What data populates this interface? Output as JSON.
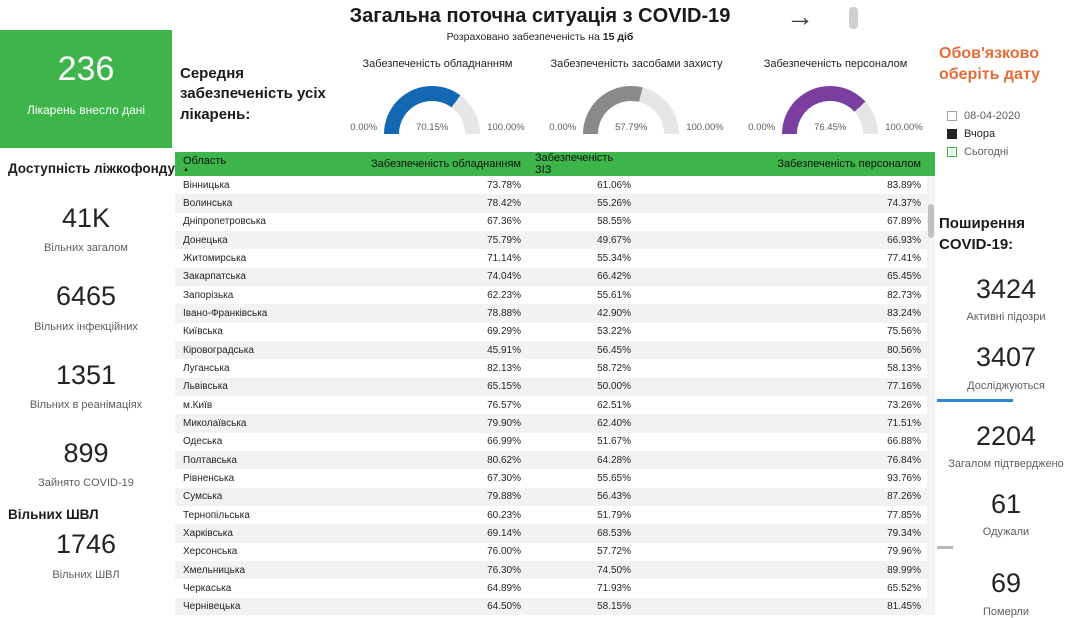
{
  "header": {
    "title": "Загальна поточна ситуація з COVID-19",
    "subtitle_prefix": "Розраховано забезпеченість на ",
    "subtitle_bold": "15 діб",
    "nav_arrow": "→"
  },
  "left_panel": {
    "hospitals_card": {
      "value": "236",
      "label": "Лікарень внесло дані"
    },
    "beds_heading": "Доступність ліжкофонду:",
    "stats": [
      {
        "value": "41K",
        "label": "Вільних загалом"
      },
      {
        "value": "6465",
        "label": "Вільних інфекційних"
      },
      {
        "value": "1351",
        "label": "Вільних в реанімаціях"
      },
      {
        "value": "899",
        "label": "Зайнято COVID-19"
      }
    ],
    "ventilators_heading": "Вільних ШВЛ",
    "ventilators_stat": {
      "value": "1746",
      "label": "Вільних ШВЛ"
    }
  },
  "gauges_section_label": "Середня забезпеченість усіх лікарень:",
  "chart_data": [
    {
      "type": "gauge",
      "items": [
        {
          "title": "Забезпеченість обладнанням",
          "value": 70.15,
          "value_label": "70.15%",
          "min_label": "0.00%",
          "max_label": "100.00%",
          "axis_range": [
            0,
            100
          ],
          "color": "#1268B3"
        },
        {
          "title": "Забезпеченість засобами захисту",
          "value": 57.79,
          "value_label": "57.79%",
          "min_label": "0.00%",
          "max_label": "100.00%",
          "axis_range": [
            0,
            100
          ],
          "color": "#8A8A8A"
        },
        {
          "title": "Забезпеченість персоналом",
          "value": 76.45,
          "value_label": "76.45%",
          "min_label": "0.00%",
          "max_label": "100.00%",
          "axis_range": [
            0,
            100
          ],
          "color": "#7B3FA0"
        }
      ]
    },
    {
      "type": "table",
      "columns": [
        "Область",
        "Забезпеченість обладнанням",
        "Забезпеченість ЗІЗ",
        "Забезпеченість персоналом"
      ],
      "sort_column": "Область",
      "sort_direction": "ascending",
      "sort_icon": "▲",
      "rows": [
        [
          "Вінницька",
          "73.78%",
          "61.06%",
          "83.89%"
        ],
        [
          "Волинська",
          "78.42%",
          "55.26%",
          "74.37%"
        ],
        [
          "Дніпропетровська",
          "67.36%",
          "58.55%",
          "67.89%"
        ],
        [
          "Донецька",
          "75.79%",
          "49.67%",
          "66.93%"
        ],
        [
          "Житомирська",
          "71.14%",
          "55.34%",
          "77.41%"
        ],
        [
          "Закарпатська",
          "74.04%",
          "66.42%",
          "65.45%"
        ],
        [
          "Запорізька",
          "62.23%",
          "55.61%",
          "82.73%"
        ],
        [
          "Івано-Франківська",
          "78.88%",
          "42.90%",
          "83.24%"
        ],
        [
          "Київська",
          "69.29%",
          "53.22%",
          "75.56%"
        ],
        [
          "Кіровоградська",
          "45.91%",
          "56.45%",
          "80.56%"
        ],
        [
          "Луганська",
          "82.13%",
          "58.72%",
          "58.13%"
        ],
        [
          "Львівська",
          "65.15%",
          "50.00%",
          "77.16%"
        ],
        [
          "м.Київ",
          "76.57%",
          "62.51%",
          "73.26%"
        ],
        [
          "Миколаївська",
          "79.90%",
          "62.40%",
          "71.51%"
        ],
        [
          "Одеська",
          "66.99%",
          "51.67%",
          "66.88%"
        ],
        [
          "Полтавська",
          "80.62%",
          "64.28%",
          "76.84%"
        ],
        [
          "Рівненська",
          "67.30%",
          "55.65%",
          "93.76%"
        ],
        [
          "Сумська",
          "79.88%",
          "56.43%",
          "87.26%"
        ],
        [
          "Тернопільська",
          "60.23%",
          "51.79%",
          "77.85%"
        ],
        [
          "Харківська",
          "69.14%",
          "68.53%",
          "79.34%"
        ],
        [
          "Херсонська",
          "76.00%",
          "57.72%",
          "79.96%"
        ],
        [
          "Хмельницька",
          "76.30%",
          "74.50%",
          "89.99%"
        ],
        [
          "Черкаська",
          "64.89%",
          "71.93%",
          "65.52%"
        ],
        [
          "Чернівецька",
          "64.50%",
          "58.15%",
          "81.45%"
        ]
      ]
    }
  ],
  "right_panel": {
    "date_notice_line1": "Обов'язково",
    "date_notice_line2": "оберіть дату",
    "date_options": [
      {
        "label": "08-04-2020",
        "checked": false
      },
      {
        "label": "Вчора",
        "checked": true
      },
      {
        "label": "Сьогодні",
        "checked": false
      }
    ],
    "spread_heading": "Поширення COVID-19:",
    "stats": [
      {
        "value": "3424",
        "label": "Активні підозри"
      },
      {
        "value": "3407",
        "label": "Досліджуються",
        "divider": "blue"
      },
      {
        "value": "2204",
        "label": "Загалом підтверджено"
      },
      {
        "value": "61",
        "label": "Одужали",
        "divider": "gray"
      },
      {
        "value": "69",
        "label": "Померли"
      }
    ]
  },
  "colors": {
    "green": "#3DB54A",
    "orange": "#E66C37",
    "gauge_blue": "#1268B3",
    "gauge_gray": "#8A8A8A",
    "gauge_purple": "#7B3FA0",
    "underline_blue": "#2B88D8",
    "text_dark": "#252423",
    "text_gray": "#605E5C"
  }
}
